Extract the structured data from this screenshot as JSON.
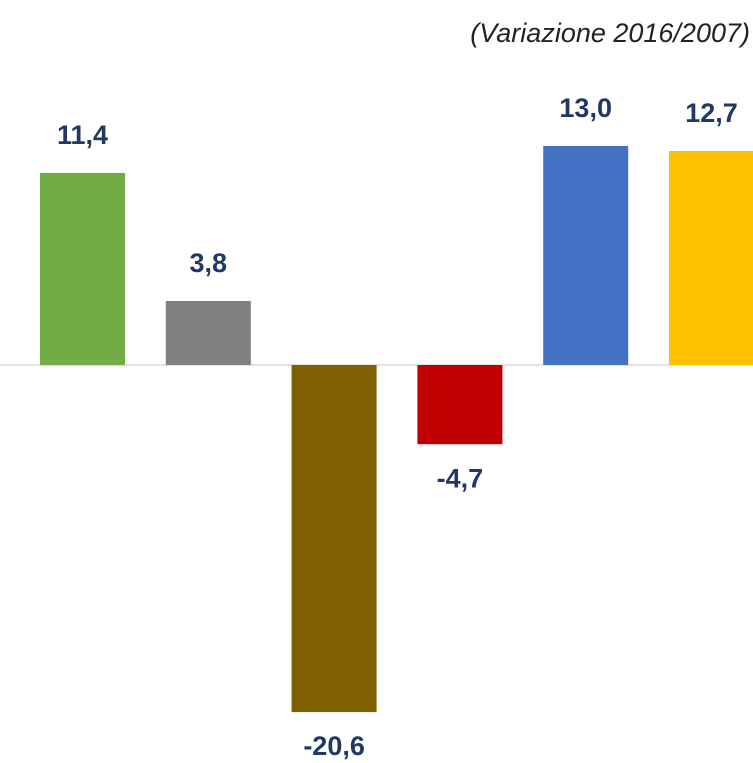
{
  "chart_data": {
    "type": "bar",
    "subtitle": "(Variazione 2016/2007)",
    "categories": [
      null,
      null,
      null,
      null,
      null,
      null
    ],
    "values": [
      11.4,
      3.8,
      -20.6,
      -4.7,
      13.0,
      12.7
    ],
    "value_labels": [
      "11,4",
      "3,8",
      "-20,6",
      "-4,7",
      "13,0",
      "12,7"
    ],
    "colors": [
      "#70ad47",
      "#808080",
      "#7f6000",
      "#c00000",
      "#4472c4",
      "#ffc000"
    ]
  }
}
